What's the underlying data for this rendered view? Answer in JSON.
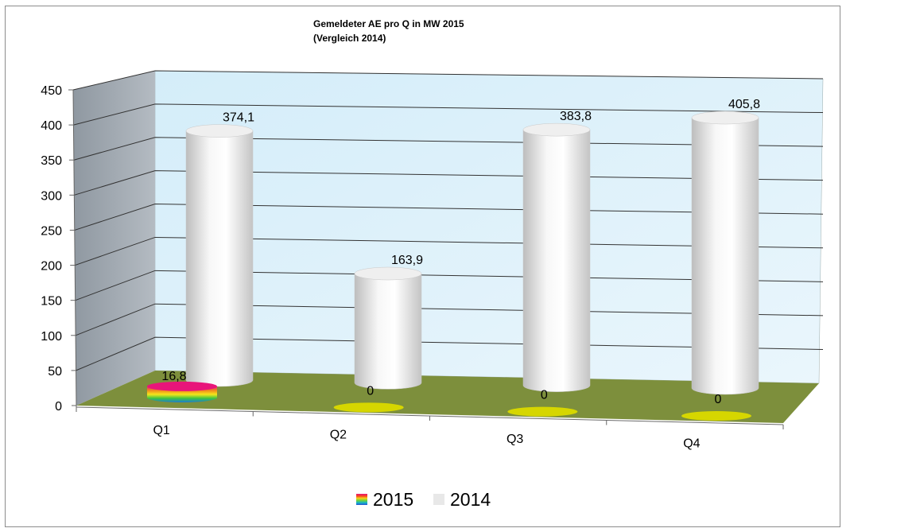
{
  "chart_data": {
    "type": "bar",
    "title_lines": [
      "Gemeldeter AE  pro Q in MW 2015",
      "(Vergleich 2014)"
    ],
    "categories": [
      "Q1",
      "Q2",
      "Q3",
      "Q4"
    ],
    "series": [
      {
        "name": "2015",
        "values": [
          16.8,
          0,
          0,
          0
        ],
        "labels": [
          "16,8",
          "0",
          "0",
          "0"
        ],
        "color": "multicolor-gradient"
      },
      {
        "name": "2014",
        "values": [
          374.1,
          163.9,
          383.8,
          405.8
        ],
        "labels": [
          "374,1",
          "163,9",
          "383,8",
          "405,8"
        ],
        "color": "#e8e8e8"
      }
    ],
    "ylim": [
      0,
      450
    ],
    "y_ticks": [
      "0",
      "50",
      "100",
      "150",
      "200",
      "250",
      "300",
      "350",
      "400",
      "450"
    ],
    "xlabel": "",
    "ylabel": "",
    "grid": true,
    "legend_position": "bottom",
    "colors": {
      "back_wall": "#dff1fb",
      "side_wall": "#a3abb3",
      "floor": "#7d8f3c",
      "zero_marker": "#d6d600",
      "gridline": "#333333"
    }
  }
}
